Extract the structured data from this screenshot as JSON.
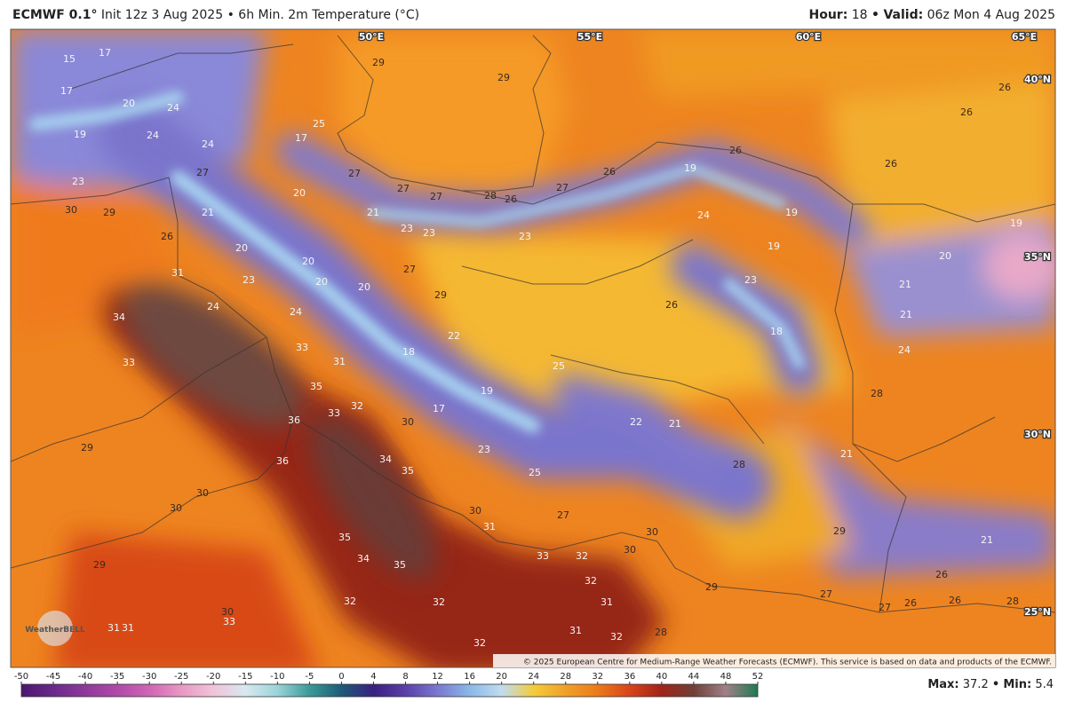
{
  "header": {
    "model": "ECMWF 0.1°",
    "description": "Init 12z 3 Aug 2025 • 6h Min. 2m Temperature (°C)",
    "hour_label": "Hour:",
    "hour": 18,
    "separator": "•",
    "valid_label": "Valid:",
    "valid": "06z Mon 4 Aug 2025"
  },
  "graticule": {
    "lon": [
      "50°E",
      "55°E",
      "60°E",
      "65°E"
    ],
    "lat": [
      "40°N",
      "35°N",
      "30°N",
      "25°N"
    ]
  },
  "map_labels": [
    15,
    17,
    17,
    20,
    24,
    19,
    24,
    24,
    27,
    23,
    30,
    29,
    21,
    26,
    20,
    20,
    20,
    20,
    20,
    23,
    31,
    24,
    24,
    34,
    33,
    33,
    31,
    35,
    33,
    32,
    36,
    30,
    36,
    34,
    35,
    29,
    30,
    30,
    29,
    35,
    34,
    35,
    32,
    32,
    30,
    33,
    31,
    31,
    32,
    31,
    32,
    28,
    31,
    32,
    30,
    33,
    32,
    30,
    31,
    30,
    27,
    25,
    23,
    17,
    19,
    18,
    22,
    25,
    22,
    21,
    28,
    29,
    21,
    26,
    27,
    29,
    27,
    26,
    26,
    28,
    21,
    28,
    24,
    21,
    21,
    20,
    19,
    23,
    26,
    18,
    19,
    19,
    24,
    19,
    26,
    26,
    26,
    27,
    28,
    26,
    27,
    27,
    27,
    21,
    23,
    23,
    27,
    29,
    23,
    26,
    26,
    29,
    17,
    25,
    29
  ],
  "logo": "WeatherBELL",
  "copyright": "© 2025 European Centre for Medium-Range Weather Forecasts (ECMWF). This service is based on data and products of the ECMWF.",
  "colorbar": {
    "ticks": [
      -50,
      -45,
      -40,
      -35,
      -30,
      -25,
      -20,
      -15,
      -10,
      -5,
      0,
      4,
      8,
      12,
      16,
      20,
      24,
      28,
      32,
      36,
      40,
      44,
      48,
      52
    ],
    "colors": [
      "#4b1670",
      "#6a2a8a",
      "#8e3a9a",
      "#b04aa8",
      "#d066b4",
      "#e898c4",
      "#f0c4d8",
      "#d8e8f0",
      "#9ad4d8",
      "#3a9a98",
      "#1e5a78",
      "#3a2080",
      "#5a40a8",
      "#7a78d0",
      "#8ab8e8",
      "#c0dcf0",
      "#f4cc3a",
      "#f0a028",
      "#ec7a18",
      "#d8441a",
      "#a02418",
      "#704038",
      "#a08088",
      "#1e7a50"
    ]
  },
  "footer": {
    "max_label": "Max:",
    "max": 37.2,
    "separator": "•",
    "min_label": "Min:",
    "min": 5.4
  }
}
